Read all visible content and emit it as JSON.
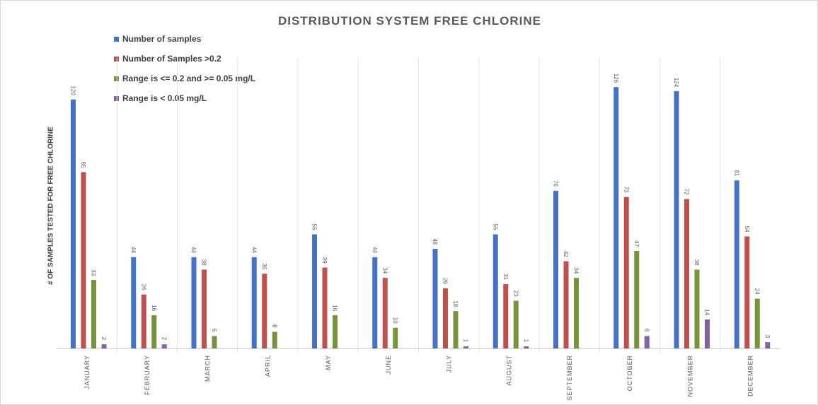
{
  "chart_data": {
    "type": "bar",
    "title": "DISTRIBUTION SYSTEM FREE CHLORINE",
    "ylabel": "# OF SAMPLES TESTED FOR FREE CHLORINE",
    "xlabel": "",
    "ylim": [
      0,
      130
    ],
    "grid": "vertical category separators",
    "legend_position": "top-left",
    "categories": [
      "JANUARY",
      "FEBRUARY",
      "MARCH",
      "APRIL",
      "MAY",
      "JUNE",
      "JULY",
      "AUGUST",
      "SEPTEMBER",
      "OCTOBER",
      "NOVEMBER",
      "DECEMBER"
    ],
    "series": [
      {
        "name": "Number of samples",
        "color": "#4472c4",
        "values": [
          120,
          44,
          44,
          44,
          55,
          44,
          48,
          55,
          76,
          126,
          124,
          81
        ]
      },
      {
        "name": "Number of Samples >0.2",
        "color": "#c0504d",
        "values": [
          85,
          26,
          38,
          36,
          39,
          34,
          29,
          31,
          42,
          73,
          72,
          54
        ]
      },
      {
        "name": "Range is <= 0.2 and >= 0.05 mg/L",
        "color": "#77933c",
        "values": [
          33,
          16,
          6,
          8,
          16,
          10,
          18,
          23,
          34,
          47,
          38,
          24
        ]
      },
      {
        "name": "Range is < 0.05 mg/L",
        "color": "#8064a2",
        "values": [
          2,
          2,
          0,
          0,
          0,
          0,
          1,
          1,
          0,
          6,
          14,
          3
        ]
      }
    ],
    "data_labels": [
      [
        "120",
        "44",
        "44",
        "44",
        "55",
        "44",
        "48",
        "55",
        "76",
        "126",
        "124",
        "81"
      ],
      [
        "85",
        "26",
        "38",
        "36",
        "39",
        "34",
        "29",
        "31",
        "42",
        "73",
        "72",
        "54"
      ],
      [
        "33",
        "16",
        "6",
        "8",
        "16",
        "10",
        "18",
        "23",
        "34",
        "47",
        "38",
        "24"
      ],
      [
        "2",
        "2",
        "",
        "",
        "",
        "",
        "1",
        "1",
        "",
        "6",
        "14",
        "3"
      ]
    ]
  }
}
